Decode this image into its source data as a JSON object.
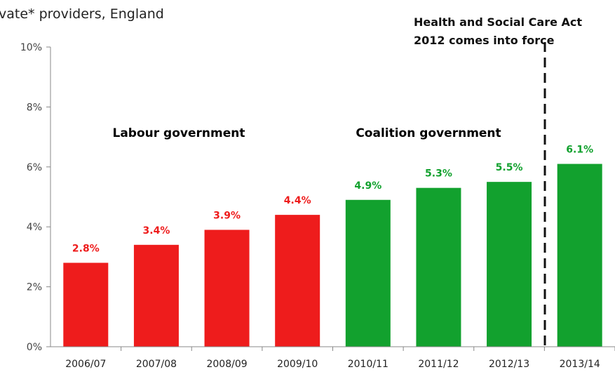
{
  "chart_data": {
    "type": "bar",
    "subtitle": "vate* providers, England",
    "categories": [
      "2006/07",
      "2007/08",
      "2008/09",
      "2009/10",
      "2010/11",
      "2011/12",
      "2012/13",
      "2013/14"
    ],
    "values": [
      2.8,
      3.4,
      3.9,
      4.4,
      4.9,
      5.3,
      5.5,
      6.1
    ],
    "data_labels": [
      "2.8%",
      "3.4%",
      "3.9%",
      "4.4%",
      "4.9%",
      "5.3%",
      "5.5%",
      "6.1%"
    ],
    "bar_groups": [
      "labour",
      "labour",
      "labour",
      "labour",
      "coalition",
      "coalition",
      "coalition",
      "coalition"
    ],
    "ylim": [
      0,
      10
    ],
    "y_ticks": [
      0,
      2,
      4,
      6,
      8,
      10
    ],
    "y_tick_labels": [
      "0%",
      "2%",
      "4%",
      "6%",
      "8%",
      "10%"
    ],
    "grid": false,
    "groups": {
      "labour": {
        "label": "Labour government",
        "color": "#ee1c1c"
      },
      "coalition": {
        "label": "Coalition government",
        "color": "#12a12e"
      }
    },
    "annotation": {
      "lines": [
        "Health and Social Care Act",
        "2012 comes into force"
      ],
      "marker_between": [
        "2012/13",
        "2013/14"
      ]
    }
  }
}
